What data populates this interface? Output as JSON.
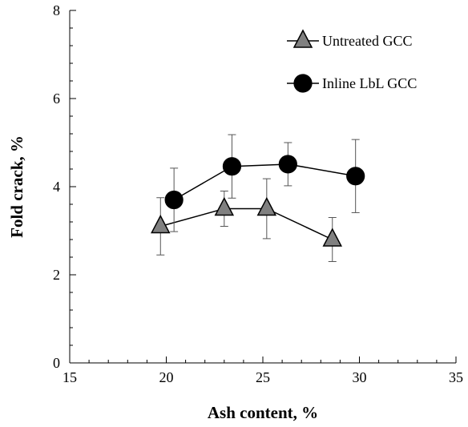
{
  "chart_data": {
    "type": "scatter",
    "title": "",
    "xlabel": "Ash content, %",
    "ylabel": "Fold crack, %",
    "xlim": [
      15,
      35
    ],
    "ylim": [
      0,
      8
    ],
    "x_major_ticks": [
      15,
      20,
      25,
      30,
      35
    ],
    "y_major_ticks": [
      0,
      2,
      4,
      6,
      8
    ],
    "x_minor_step": 1,
    "y_minor_step": 0.4,
    "grid": false,
    "legend_position": "top-right",
    "series": [
      {
        "name": "Untreated GCC",
        "marker": "triangle",
        "color": "#808080",
        "x": [
          19.7,
          23.0,
          25.2,
          28.6
        ],
        "y": [
          3.1,
          3.5,
          3.5,
          2.8
        ],
        "error": [
          0.65,
          0.4,
          0.68,
          0.5
        ]
      },
      {
        "name": "Inline LbL GCC",
        "marker": "circle",
        "color": "#000000",
        "x": [
          20.4,
          23.4,
          26.3,
          29.8
        ],
        "y": [
          3.7,
          4.46,
          4.51,
          4.24
        ],
        "error": [
          0.72,
          0.72,
          0.49,
          0.83
        ]
      }
    ]
  }
}
